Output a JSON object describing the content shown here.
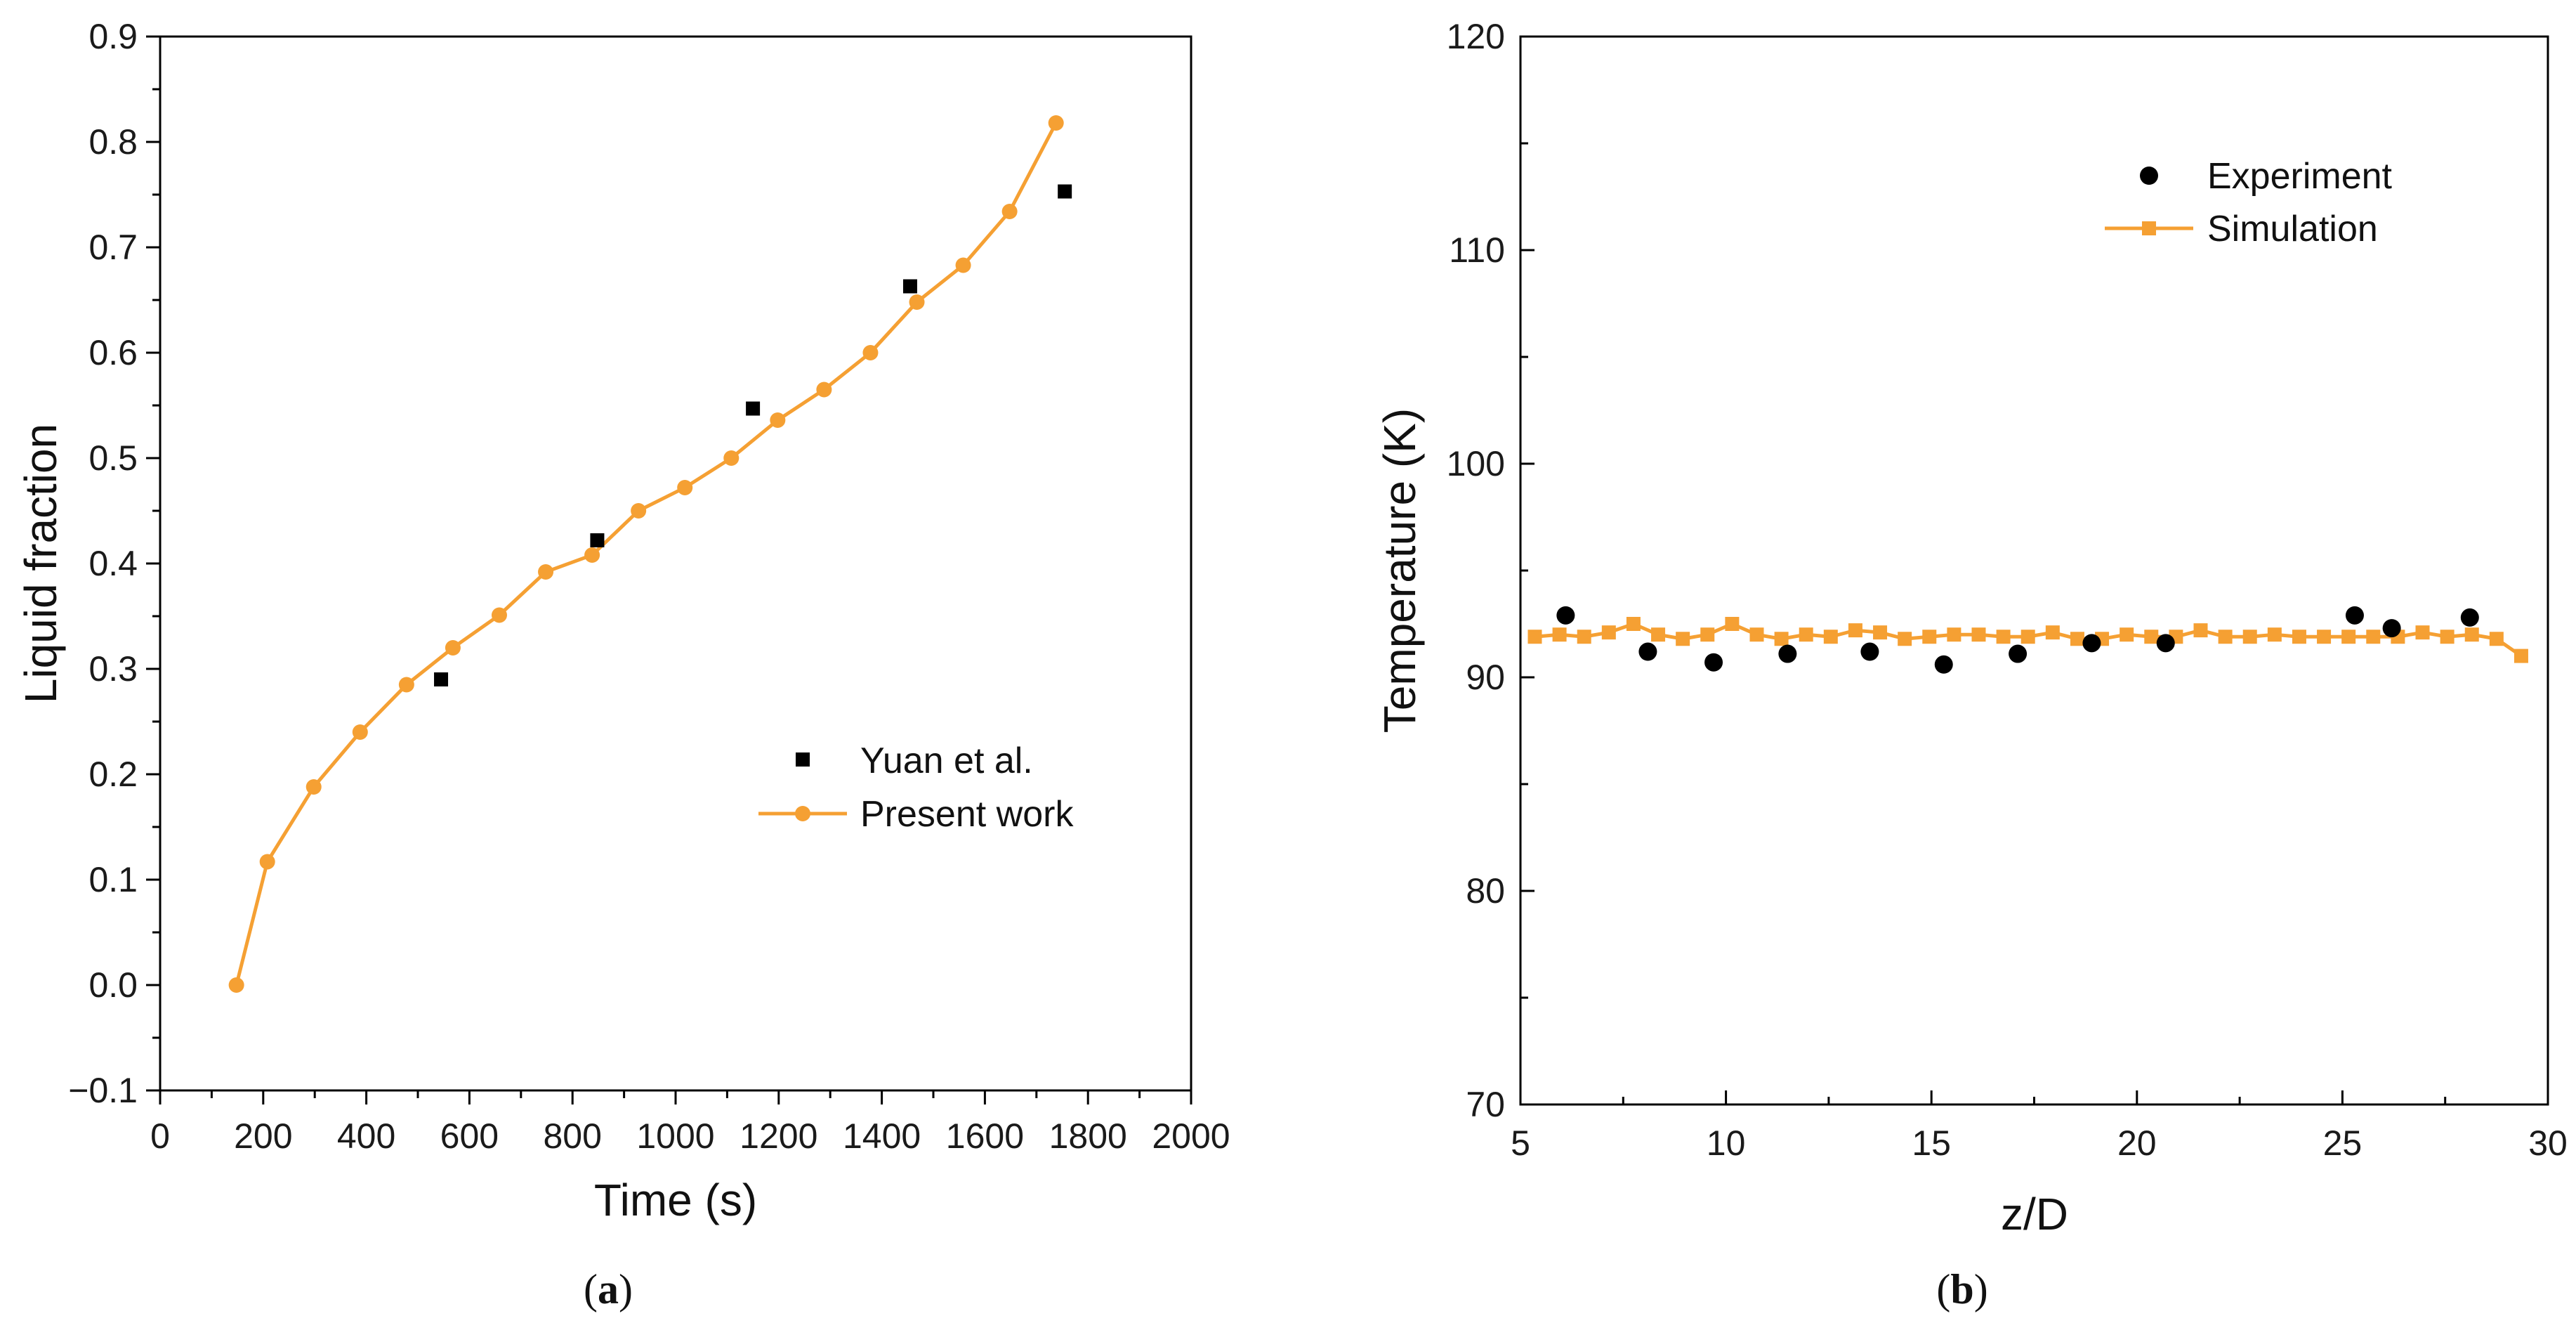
{
  "chart_data": [
    {
      "type": "line",
      "panel_label": "a",
      "xlabel": "Time (s)",
      "ylabel": "Liquid fraction",
      "xlim": [
        0,
        2000
      ],
      "ylim": [
        -0.1,
        0.9
      ],
      "x_ticks": [
        0,
        200,
        400,
        600,
        800,
        1000,
        1200,
        1400,
        1600,
        1800,
        2000
      ],
      "y_ticks": [
        -0.1,
        0.0,
        0.1,
        0.2,
        0.3,
        0.4,
        0.5,
        0.6,
        0.7,
        0.8,
        0.9
      ],
      "legend_position": "center-right",
      "series": [
        {
          "name": "Yuan et al.",
          "style": "scatter",
          "marker": "square",
          "color": "#000000",
          "x": [
            545,
            848,
            1150,
            1455,
            1755
          ],
          "y": [
            0.29,
            0.422,
            0.547,
            0.663,
            0.753
          ]
        },
        {
          "name": "Present work",
          "style": "line",
          "marker": "circle",
          "color": "#f5a033",
          "x": [
            148,
            208,
            298,
            388,
            478,
            568,
            658,
            748,
            838,
            928,
            1018,
            1108,
            1198,
            1288,
            1378,
            1468,
            1558,
            1648,
            1738
          ],
          "y": [
            0.0,
            0.117,
            0.188,
            0.24,
            0.285,
            0.32,
            0.351,
            0.392,
            0.408,
            0.45,
            0.472,
            0.5,
            0.536,
            0.565,
            0.6,
            0.648,
            0.683,
            0.734,
            0.818
          ]
        }
      ]
    },
    {
      "type": "line",
      "panel_label": "b",
      "xlabel": "z/D",
      "ylabel": "Temperature (K)",
      "xlim": [
        5,
        30
      ],
      "ylim": [
        70,
        120
      ],
      "x_ticks": [
        5,
        10,
        15,
        20,
        25,
        30
      ],
      "y_ticks": [
        70,
        80,
        90,
        100,
        110,
        120
      ],
      "legend_position": "upper-center",
      "series": [
        {
          "name": "Experiment",
          "style": "scatter",
          "marker": "circle",
          "color": "#000000",
          "x": [
            6.1,
            8.1,
            9.7,
            11.5,
            13.5,
            15.3,
            17.1,
            18.9,
            20.7,
            25.3,
            26.2,
            28.1
          ],
          "y": [
            92.9,
            91.2,
            90.7,
            91.1,
            91.2,
            90.6,
            91.1,
            91.6,
            91.6,
            92.9,
            92.3,
            92.8
          ]
        },
        {
          "name": "Simulation",
          "style": "line",
          "marker": "square",
          "color": "#f5a033",
          "x": [
            5.35,
            5.95,
            6.55,
            7.15,
            7.75,
            8.35,
            8.95,
            9.55,
            10.15,
            10.75,
            11.35,
            11.95,
            12.55,
            13.15,
            13.75,
            14.35,
            14.95,
            15.55,
            16.15,
            16.75,
            17.35,
            17.95,
            18.55,
            19.15,
            19.75,
            20.35,
            20.95,
            21.55,
            22.15,
            22.75,
            23.35,
            23.95,
            24.55,
            25.15,
            25.75,
            26.35,
            26.95,
            27.55,
            28.15,
            28.75,
            29.35
          ],
          "y": [
            91.9,
            92.0,
            91.9,
            92.1,
            92.5,
            92.0,
            91.8,
            92.0,
            92.5,
            92.0,
            91.8,
            92.0,
            91.9,
            92.2,
            92.1,
            91.8,
            91.9,
            92.0,
            92.0,
            91.9,
            91.9,
            92.1,
            91.8,
            91.8,
            92.0,
            91.9,
            91.9,
            92.2,
            91.9,
            91.9,
            92.0,
            91.9,
            91.9,
            91.9,
            91.9,
            91.9,
            92.1,
            91.9,
            92.0,
            91.8,
            91.0
          ]
        }
      ]
    }
  ]
}
